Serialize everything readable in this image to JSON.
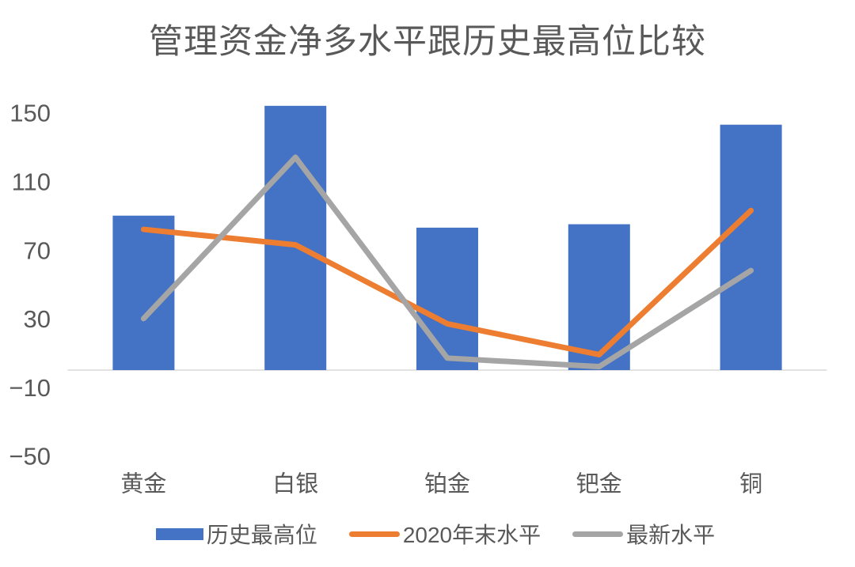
{
  "chart_data": {
    "type": "bar",
    "combo": "bar+line",
    "title": "管理资金净多水平跟历史最高位比较",
    "categories": [
      "黄金",
      "白银",
      "铂金",
      "钯金",
      "铜"
    ],
    "series": [
      {
        "name": "历史最高位",
        "type": "bar",
        "color": "#4472C4",
        "values": [
          90,
          154,
          83,
          85,
          143
        ]
      },
      {
        "name": "2020年末水平",
        "type": "line",
        "color": "#ED7D31",
        "values": [
          82,
          73,
          27,
          9,
          93
        ]
      },
      {
        "name": "最新水平",
        "type": "line",
        "color": "#A5A5A5",
        "values": [
          30,
          124,
          7,
          2,
          58
        ]
      }
    ],
    "yticks": [
      {
        "value": 150,
        "label": "150"
      },
      {
        "value": 110,
        "label": "110"
      },
      {
        "value": 70,
        "label": "70"
      },
      {
        "value": 30,
        "label": "30"
      },
      {
        "value": -10,
        "label": "−10"
      },
      {
        "value": -50,
        "label": "−50"
      }
    ],
    "ylim": [
      -50,
      150
    ],
    "xlabel": "",
    "ylabel": "",
    "grid": false,
    "axis_line_color": "#D9D9D9",
    "text_color": "#595959",
    "legend_position": "bottom"
  }
}
